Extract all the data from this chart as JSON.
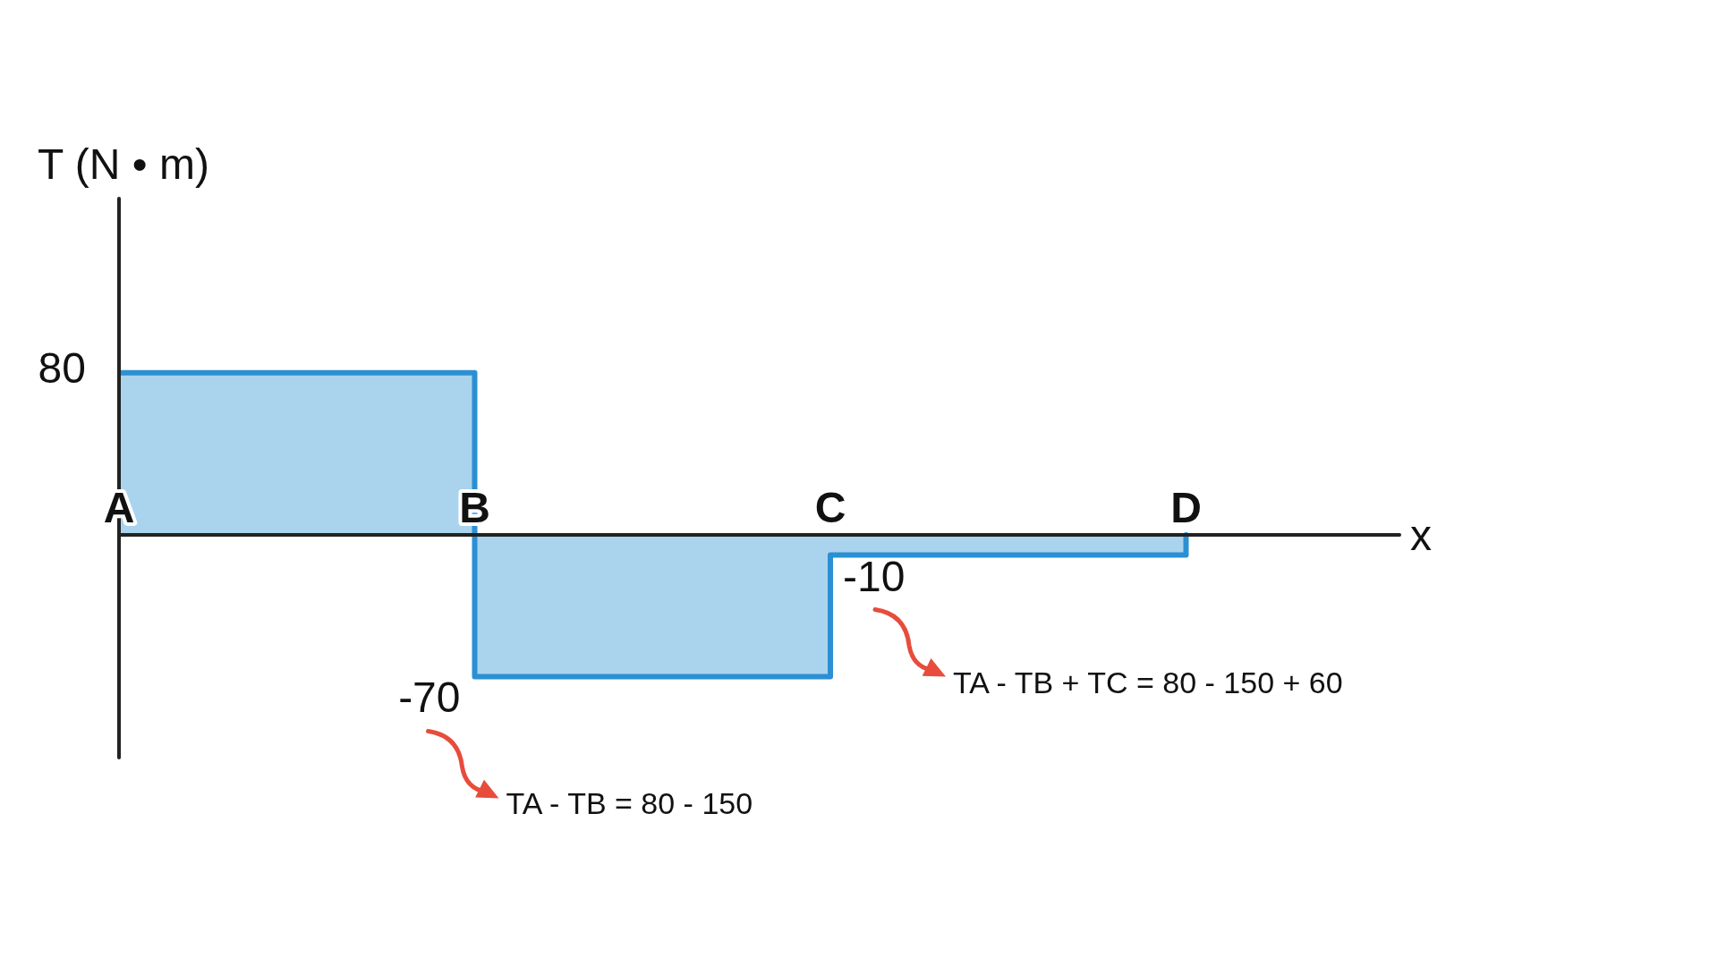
{
  "chart_data": {
    "type": "step",
    "xlabel": "x",
    "ylabel": "T (N • m)",
    "categories": [
      "A",
      "B",
      "C",
      "D"
    ],
    "values": [
      80,
      -70,
      -10,
      0
    ],
    "color": "#2b90d3",
    "value_labels": [
      "80",
      "-70",
      "-10",
      null
    ],
    "ylim": [
      -110,
      166
    ],
    "annotations": [
      "TA - TB = 80 - 150",
      "TA - TB + TC = 80 - 150 + 60"
    ]
  }
}
